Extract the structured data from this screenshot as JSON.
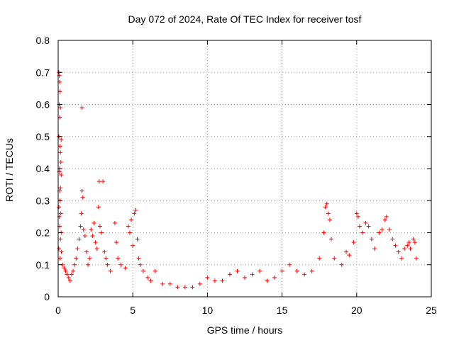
{
  "chart_data": {
    "type": "scatter",
    "title": "Day 072 of 2024, Rate Of TEC Index for receiver tosf",
    "xlabel": "GPS time / hours",
    "ylabel": "ROTI / TECUs",
    "xlim": [
      0,
      25
    ],
    "ylim": [
      0,
      0.8
    ],
    "xticks": [
      "0",
      "5",
      "10",
      "15",
      "20",
      "25"
    ],
    "yticks": [
      "0",
      "0.1",
      "0.2",
      "0.3",
      "0.4",
      "0.5",
      "0.6",
      "0.7",
      "0.8"
    ],
    "grid": true,
    "marker": "plus",
    "color": "#ff0000",
    "series": [
      {
        "points": [
          [
            0.05,
            0.7
          ],
          [
            0.08,
            0.69
          ],
          [
            0.1,
            0.67
          ],
          [
            0.12,
            0.64
          ],
          [
            0.07,
            0.6
          ],
          [
            0.15,
            0.59
          ],
          [
            0.1,
            0.56
          ],
          [
            0.05,
            0.5
          ],
          [
            0.2,
            0.49
          ],
          [
            0.12,
            0.47
          ],
          [
            0.15,
            0.45
          ],
          [
            0.18,
            0.42
          ],
          [
            0.1,
            0.4
          ],
          [
            0.08,
            0.39
          ],
          [
            0.2,
            0.38
          ],
          [
            0.15,
            0.34
          ],
          [
            0.1,
            0.33
          ],
          [
            0.12,
            0.3
          ],
          [
            0.05,
            0.28
          ],
          [
            0.18,
            0.26
          ],
          [
            0.08,
            0.25
          ],
          [
            0.1,
            0.22
          ],
          [
            0.2,
            0.2
          ],
          [
            0.15,
            0.18
          ],
          [
            0.05,
            0.15
          ],
          [
            0.22,
            0.14
          ],
          [
            0.12,
            0.12
          ],
          [
            0.3,
            0.1
          ],
          [
            0.4,
            0.09
          ],
          [
            0.5,
            0.08
          ],
          [
            0.6,
            0.07
          ],
          [
            0.7,
            0.06
          ],
          [
            0.8,
            0.05
          ],
          [
            0.9,
            0.07
          ],
          [
            1.0,
            0.08
          ],
          [
            1.1,
            0.1
          ],
          [
            1.2,
            0.12
          ],
          [
            1.3,
            0.15
          ],
          [
            1.4,
            0.18
          ],
          [
            1.5,
            0.22
          ],
          [
            1.55,
            0.26
          ],
          [
            1.6,
            0.59
          ],
          [
            1.6,
            0.33
          ],
          [
            1.65,
            0.31
          ],
          [
            1.7,
            0.21
          ],
          [
            1.8,
            0.19
          ],
          [
            1.9,
            0.14
          ],
          [
            2.0,
            0.1
          ],
          [
            2.1,
            0.12
          ],
          [
            2.2,
            0.21
          ],
          [
            2.3,
            0.19
          ],
          [
            2.4,
            0.23
          ],
          [
            2.5,
            0.17
          ],
          [
            2.6,
            0.15
          ],
          [
            2.7,
            0.28
          ],
          [
            2.75,
            0.36
          ],
          [
            2.8,
            0.22
          ],
          [
            2.9,
            0.2
          ],
          [
            3.0,
            0.36
          ],
          [
            3.1,
            0.14
          ],
          [
            3.2,
            0.12
          ],
          [
            3.3,
            0.1
          ],
          [
            3.5,
            0.08
          ],
          [
            3.8,
            0.23
          ],
          [
            3.9,
            0.17
          ],
          [
            4.0,
            0.12
          ],
          [
            4.2,
            0.1
          ],
          [
            4.5,
            0.09
          ],
          [
            4.7,
            0.22
          ],
          [
            4.8,
            0.2
          ],
          [
            4.9,
            0.24
          ],
          [
            5.0,
            0.16
          ],
          [
            5.1,
            0.26
          ],
          [
            5.2,
            0.27
          ],
          [
            5.3,
            0.18
          ],
          [
            5.4,
            0.12
          ],
          [
            5.5,
            0.1
          ],
          [
            5.7,
            0.08
          ],
          [
            6.0,
            0.06
          ],
          [
            6.2,
            0.05
          ],
          [
            6.5,
            0.08
          ],
          [
            7.0,
            0.04
          ],
          [
            7.5,
            0.04
          ],
          [
            8.0,
            0.03
          ],
          [
            8.5,
            0.03
          ],
          [
            9.0,
            0.03
          ],
          [
            9.5,
            0.04
          ],
          [
            10.0,
            0.06
          ],
          [
            10.5,
            0.05
          ],
          [
            11.0,
            0.05
          ],
          [
            11.5,
            0.07
          ],
          [
            12.0,
            0.08
          ],
          [
            12.5,
            0.06
          ],
          [
            13.0,
            0.07
          ],
          [
            13.5,
            0.08
          ],
          [
            14.0,
            0.05
          ],
          [
            14.5,
            0.06
          ],
          [
            15.0,
            0.08
          ],
          [
            15.5,
            0.1
          ],
          [
            16.0,
            0.08
          ],
          [
            16.5,
            0.07
          ],
          [
            17.0,
            0.08
          ],
          [
            17.5,
            0.12
          ],
          [
            17.8,
            0.2
          ],
          [
            17.9,
            0.28
          ],
          [
            18.0,
            0.29
          ],
          [
            18.1,
            0.26
          ],
          [
            18.2,
            0.24
          ],
          [
            18.3,
            0.18
          ],
          [
            18.5,
            0.12
          ],
          [
            19.0,
            0.1
          ],
          [
            19.3,
            0.14
          ],
          [
            19.5,
            0.13
          ],
          [
            19.8,
            0.17
          ],
          [
            20.0,
            0.26
          ],
          [
            20.1,
            0.25
          ],
          [
            20.2,
            0.22
          ],
          [
            20.4,
            0.2
          ],
          [
            20.6,
            0.23
          ],
          [
            20.8,
            0.22
          ],
          [
            21.0,
            0.18
          ],
          [
            21.2,
            0.15
          ],
          [
            21.5,
            0.2
          ],
          [
            21.7,
            0.21
          ],
          [
            21.9,
            0.24
          ],
          [
            22.0,
            0.25
          ],
          [
            22.2,
            0.21
          ],
          [
            22.4,
            0.18
          ],
          [
            22.6,
            0.16
          ],
          [
            22.8,
            0.14
          ],
          [
            23.0,
            0.12
          ],
          [
            23.2,
            0.15
          ],
          [
            23.4,
            0.16
          ],
          [
            23.5,
            0.17
          ],
          [
            23.6,
            0.15
          ],
          [
            23.8,
            0.18
          ],
          [
            23.9,
            0.17
          ],
          [
            24.0,
            0.12
          ]
        ]
      }
    ]
  }
}
